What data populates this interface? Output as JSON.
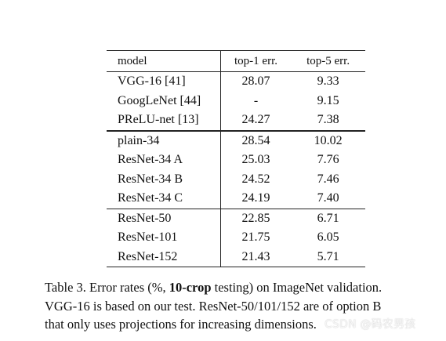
{
  "table": {
    "headers": [
      "model",
      "top-1 err.",
      "top-5 err."
    ],
    "groups": [
      [
        {
          "model": "VGG-16 [41]",
          "top1": "28.07",
          "top5": "9.33"
        },
        {
          "model": "GoogLeNet [44]",
          "top1": "-",
          "top5": "9.15"
        },
        {
          "model": "PReLU-net [13]",
          "top1": "24.27",
          "top5": "7.38"
        }
      ],
      [
        {
          "model": "plain-34",
          "top1": "28.54",
          "top5": "10.02"
        },
        {
          "model": "ResNet-34 A",
          "top1": "25.03",
          "top5": "7.76"
        },
        {
          "model": "ResNet-34 B",
          "top1": "24.52",
          "top5": "7.46"
        },
        {
          "model": "ResNet-34 C",
          "top1": "24.19",
          "top5": "7.40"
        }
      ],
      [
        {
          "model": "ResNet-50",
          "top1": "22.85",
          "top5": "6.71"
        },
        {
          "model": "ResNet-101",
          "top1": "21.75",
          "top5": "6.05"
        },
        {
          "model": "ResNet-152",
          "top1": "21.43",
          "top5": "5.71"
        }
      ]
    ]
  },
  "caption": {
    "line1_pre": "Table 3. Error rates (%, ",
    "line1_bold": "10-crop",
    "line1_post": " testing) on ImageNet validation.",
    "line2": "VGG-16 is based on our test. ResNet-50/101/152 are of option B",
    "line3": "that only uses projections for increasing dimensions."
  },
  "watermark": "CSDN @码农男孩"
}
